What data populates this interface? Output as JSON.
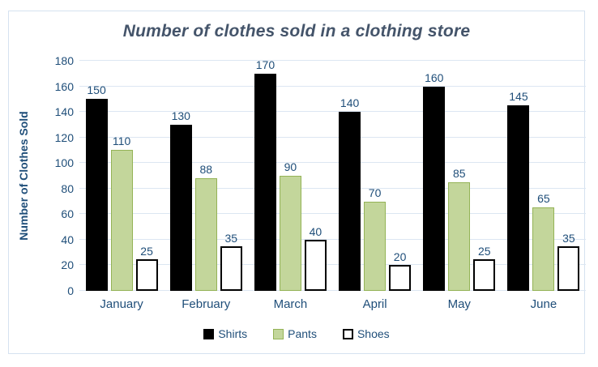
{
  "chart_data": {
    "type": "bar",
    "title": "Number of clothes sold in a clothing store",
    "xlabel": "",
    "ylabel": "Number of Clothes Sold",
    "categories": [
      "January",
      "February",
      "March",
      "April",
      "May",
      "June"
    ],
    "series": [
      {
        "name": "Shirts",
        "values": [
          150,
          130,
          170,
          140,
          160,
          145
        ],
        "fill": "#000000",
        "border": "#000000",
        "border_width": 1
      },
      {
        "name": "Pants",
        "values": [
          110,
          88,
          90,
          70,
          85,
          65
        ],
        "fill": "#c3d69b",
        "border": "#94b356",
        "border_width": 1.5
      },
      {
        "name": "Shoes",
        "values": [
          25,
          35,
          40,
          20,
          25,
          35
        ],
        "fill": "#ffffff",
        "border": "#000000",
        "border_width": 2
      }
    ],
    "ylim": [
      0,
      180
    ],
    "ytick_step": 20,
    "grid": true,
    "data_labels": true,
    "legend_position": "bottom"
  },
  "colors": {
    "title": "#44546A",
    "axis_text": "#1F4E79",
    "gridline": "#DCE6F2",
    "frame_border": "#D5E2F0",
    "background": "#FFFFFF"
  }
}
